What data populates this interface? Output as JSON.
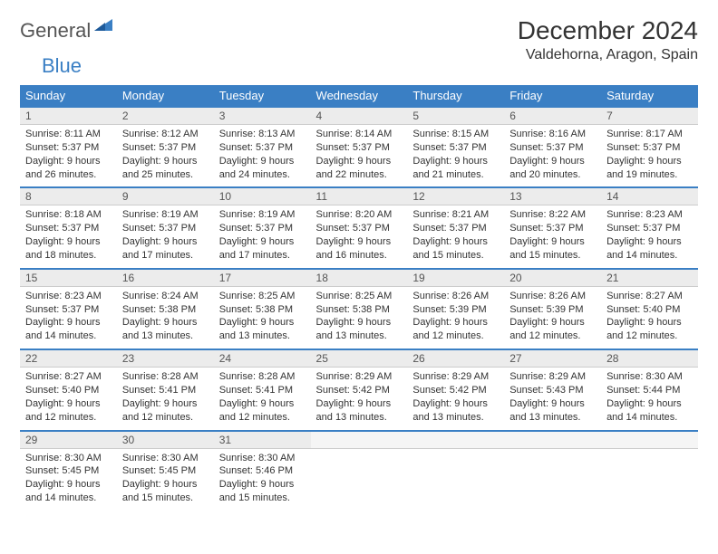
{
  "logo": {
    "word1": "General",
    "word2": "Blue"
  },
  "title": "December 2024",
  "location": "Valdehorna, Aragon, Spain",
  "colors": {
    "header_bg": "#3a7fc4",
    "header_fg": "#ffffff",
    "daynum_bg": "#ececec",
    "row_border": "#3a7fc4",
    "text": "#333333",
    "logo_grey": "#555555",
    "logo_blue": "#3a7fc4"
  },
  "fonts": {
    "title_size": 28,
    "location_size": 16,
    "header_size": 13,
    "daynum_size": 12,
    "detail_size": 11
  },
  "weekdays": [
    "Sunday",
    "Monday",
    "Tuesday",
    "Wednesday",
    "Thursday",
    "Friday",
    "Saturday"
  ],
  "weeks": [
    [
      {
        "day": "1",
        "sunrise": "Sunrise: 8:11 AM",
        "sunset": "Sunset: 5:37 PM",
        "daylight": "Daylight: 9 hours and 26 minutes."
      },
      {
        "day": "2",
        "sunrise": "Sunrise: 8:12 AM",
        "sunset": "Sunset: 5:37 PM",
        "daylight": "Daylight: 9 hours and 25 minutes."
      },
      {
        "day": "3",
        "sunrise": "Sunrise: 8:13 AM",
        "sunset": "Sunset: 5:37 PM",
        "daylight": "Daylight: 9 hours and 24 minutes."
      },
      {
        "day": "4",
        "sunrise": "Sunrise: 8:14 AM",
        "sunset": "Sunset: 5:37 PM",
        "daylight": "Daylight: 9 hours and 22 minutes."
      },
      {
        "day": "5",
        "sunrise": "Sunrise: 8:15 AM",
        "sunset": "Sunset: 5:37 PM",
        "daylight": "Daylight: 9 hours and 21 minutes."
      },
      {
        "day": "6",
        "sunrise": "Sunrise: 8:16 AM",
        "sunset": "Sunset: 5:37 PM",
        "daylight": "Daylight: 9 hours and 20 minutes."
      },
      {
        "day": "7",
        "sunrise": "Sunrise: 8:17 AM",
        "sunset": "Sunset: 5:37 PM",
        "daylight": "Daylight: 9 hours and 19 minutes."
      }
    ],
    [
      {
        "day": "8",
        "sunrise": "Sunrise: 8:18 AM",
        "sunset": "Sunset: 5:37 PM",
        "daylight": "Daylight: 9 hours and 18 minutes."
      },
      {
        "day": "9",
        "sunrise": "Sunrise: 8:19 AM",
        "sunset": "Sunset: 5:37 PM",
        "daylight": "Daylight: 9 hours and 17 minutes."
      },
      {
        "day": "10",
        "sunrise": "Sunrise: 8:19 AM",
        "sunset": "Sunset: 5:37 PM",
        "daylight": "Daylight: 9 hours and 17 minutes."
      },
      {
        "day": "11",
        "sunrise": "Sunrise: 8:20 AM",
        "sunset": "Sunset: 5:37 PM",
        "daylight": "Daylight: 9 hours and 16 minutes."
      },
      {
        "day": "12",
        "sunrise": "Sunrise: 8:21 AM",
        "sunset": "Sunset: 5:37 PM",
        "daylight": "Daylight: 9 hours and 15 minutes."
      },
      {
        "day": "13",
        "sunrise": "Sunrise: 8:22 AM",
        "sunset": "Sunset: 5:37 PM",
        "daylight": "Daylight: 9 hours and 15 minutes."
      },
      {
        "day": "14",
        "sunrise": "Sunrise: 8:23 AM",
        "sunset": "Sunset: 5:37 PM",
        "daylight": "Daylight: 9 hours and 14 minutes."
      }
    ],
    [
      {
        "day": "15",
        "sunrise": "Sunrise: 8:23 AM",
        "sunset": "Sunset: 5:37 PM",
        "daylight": "Daylight: 9 hours and 14 minutes."
      },
      {
        "day": "16",
        "sunrise": "Sunrise: 8:24 AM",
        "sunset": "Sunset: 5:38 PM",
        "daylight": "Daylight: 9 hours and 13 minutes."
      },
      {
        "day": "17",
        "sunrise": "Sunrise: 8:25 AM",
        "sunset": "Sunset: 5:38 PM",
        "daylight": "Daylight: 9 hours and 13 minutes."
      },
      {
        "day": "18",
        "sunrise": "Sunrise: 8:25 AM",
        "sunset": "Sunset: 5:38 PM",
        "daylight": "Daylight: 9 hours and 13 minutes."
      },
      {
        "day": "19",
        "sunrise": "Sunrise: 8:26 AM",
        "sunset": "Sunset: 5:39 PM",
        "daylight": "Daylight: 9 hours and 12 minutes."
      },
      {
        "day": "20",
        "sunrise": "Sunrise: 8:26 AM",
        "sunset": "Sunset: 5:39 PM",
        "daylight": "Daylight: 9 hours and 12 minutes."
      },
      {
        "day": "21",
        "sunrise": "Sunrise: 8:27 AM",
        "sunset": "Sunset: 5:40 PM",
        "daylight": "Daylight: 9 hours and 12 minutes."
      }
    ],
    [
      {
        "day": "22",
        "sunrise": "Sunrise: 8:27 AM",
        "sunset": "Sunset: 5:40 PM",
        "daylight": "Daylight: 9 hours and 12 minutes."
      },
      {
        "day": "23",
        "sunrise": "Sunrise: 8:28 AM",
        "sunset": "Sunset: 5:41 PM",
        "daylight": "Daylight: 9 hours and 12 minutes."
      },
      {
        "day": "24",
        "sunrise": "Sunrise: 8:28 AM",
        "sunset": "Sunset: 5:41 PM",
        "daylight": "Daylight: 9 hours and 12 minutes."
      },
      {
        "day": "25",
        "sunrise": "Sunrise: 8:29 AM",
        "sunset": "Sunset: 5:42 PM",
        "daylight": "Daylight: 9 hours and 13 minutes."
      },
      {
        "day": "26",
        "sunrise": "Sunrise: 8:29 AM",
        "sunset": "Sunset: 5:42 PM",
        "daylight": "Daylight: 9 hours and 13 minutes."
      },
      {
        "day": "27",
        "sunrise": "Sunrise: 8:29 AM",
        "sunset": "Sunset: 5:43 PM",
        "daylight": "Daylight: 9 hours and 13 minutes."
      },
      {
        "day": "28",
        "sunrise": "Sunrise: 8:30 AM",
        "sunset": "Sunset: 5:44 PM",
        "daylight": "Daylight: 9 hours and 14 minutes."
      }
    ],
    [
      {
        "day": "29",
        "sunrise": "Sunrise: 8:30 AM",
        "sunset": "Sunset: 5:45 PM",
        "daylight": "Daylight: 9 hours and 14 minutes."
      },
      {
        "day": "30",
        "sunrise": "Sunrise: 8:30 AM",
        "sunset": "Sunset: 5:45 PM",
        "daylight": "Daylight: 9 hours and 15 minutes."
      },
      {
        "day": "31",
        "sunrise": "Sunrise: 8:30 AM",
        "sunset": "Sunset: 5:46 PM",
        "daylight": "Daylight: 9 hours and 15 minutes."
      },
      null,
      null,
      null,
      null
    ]
  ]
}
